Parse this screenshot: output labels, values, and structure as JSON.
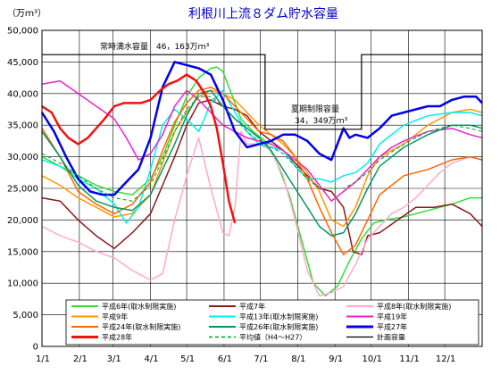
{
  "chart_data": {
    "type": "line",
    "title": "利根川上流８ダム貯水容量",
    "ylabel": "（万ｍ³）",
    "ylim": [
      0,
      50000
    ],
    "yticks": [
      0,
      5000,
      10000,
      15000,
      20000,
      25000,
      30000,
      35000,
      40000,
      45000,
      50000
    ],
    "ytick_labels": [
      "0",
      "5,000",
      "10,000",
      "15,000",
      "20,000",
      "25,000",
      "30,000",
      "35,000",
      "40,000",
      "45,000",
      "50,000"
    ],
    "xlim": [
      0,
      365
    ],
    "xticks": [
      0,
      31,
      59,
      90,
      120,
      151,
      181,
      212,
      243,
      273,
      304,
      334
    ],
    "xtick_labels": [
      "1/1",
      "2/1",
      "3/1",
      "4/1",
      "5/1",
      "6/1",
      "7/1",
      "8/1",
      "9/1",
      "10/1",
      "11/1",
      "12/1"
    ],
    "annotations": [
      {
        "text": "常時満水容量　46，163万ｍ³"
      },
      {
        "text": "夏期制限容量"
      },
      {
        "text": "34，349万ｍ³"
      }
    ],
    "capacity": {
      "name": "計画容量",
      "points": [
        [
          0,
          46163
        ],
        [
          185,
          46163
        ],
        [
          185,
          34349
        ],
        [
          265,
          34349
        ],
        [
          265,
          46163
        ],
        [
          365,
          46163
        ]
      ]
    },
    "series": [
      {
        "name": "平成6年(取水制限実施)",
        "color": "#33dd33",
        "width": 1.5,
        "dash": "",
        "x": [
          0,
          15,
          30,
          45,
          60,
          75,
          90,
          100,
          110,
          120,
          130,
          140,
          145,
          150,
          157,
          165,
          175,
          185,
          195,
          205,
          215,
          225,
          235,
          245,
          255,
          265,
          275,
          285,
          300,
          320,
          340,
          355,
          365
        ],
        "y": [
          30000,
          28500,
          27000,
          25500,
          24500,
          24000,
          26500,
          30000,
          35000,
          39500,
          42500,
          44000,
          44200,
          43500,
          40000,
          36000,
          34000,
          32500,
          29000,
          24000,
          17000,
          10000,
          8000,
          9500,
          13500,
          17000,
          19500,
          20000,
          20500,
          21500,
          22500,
          23500,
          23500
        ]
      },
      {
        "name": "平成7年",
        "color": "#8b1a1a",
        "width": 1.5,
        "dash": "",
        "x": [
          0,
          15,
          30,
          45,
          60,
          75,
          90,
          100,
          110,
          120,
          130,
          140,
          150,
          160,
          170,
          180,
          190,
          200,
          210,
          220,
          230,
          240,
          250,
          258,
          265,
          270,
          280,
          295,
          310,
          325,
          340,
          355,
          365
        ],
        "y": [
          23500,
          23000,
          20000,
          17500,
          15500,
          18000,
          21000,
          25500,
          30000,
          35000,
          38500,
          39000,
          38000,
          37500,
          36500,
          34000,
          32500,
          31000,
          29000,
          27000,
          25000,
          24500,
          22000,
          15000,
          14500,
          17500,
          18000,
          20000,
          22000,
          22000,
          22500,
          21000,
          19000
        ]
      },
      {
        "name": "平成8年(取水制限実施)",
        "color": "#ffaacc",
        "width": 1.5,
        "dash": "",
        "x": [
          0,
          15,
          30,
          45,
          60,
          75,
          90,
          100,
          110,
          120,
          130,
          140,
          150,
          155,
          160,
          165,
          170,
          180,
          190,
          200,
          210,
          220,
          230,
          240,
          250,
          260,
          270,
          280,
          290,
          300,
          310,
          320,
          330,
          340,
          355,
          365
        ],
        "y": [
          19000,
          17500,
          16500,
          15000,
          14000,
          12000,
          10500,
          11500,
          20000,
          27000,
          33000,
          25000,
          18000,
          17500,
          22000,
          34000,
          32000,
          32000,
          31000,
          27000,
          20000,
          12000,
          8000,
          8500,
          9500,
          13000,
          17000,
          19000,
          21000,
          22000,
          23500,
          25500,
          27500,
          29000,
          30000,
          29500
        ]
      },
      {
        "name": "平成9年",
        "color": "#ff9900",
        "width": 1.5,
        "dash": "",
        "x": [
          0,
          15,
          30,
          45,
          60,
          75,
          90,
          100,
          110,
          120,
          130,
          140,
          150,
          160,
          170,
          180,
          190,
          200,
          210,
          220,
          230,
          240,
          250,
          260,
          270,
          280,
          300,
          320,
          340,
          355,
          365
        ],
        "y": [
          27000,
          25500,
          23500,
          22000,
          20500,
          21000,
          24000,
          29000,
          34000,
          37000,
          39500,
          40500,
          40000,
          39000,
          37000,
          35000,
          33500,
          32000,
          30000,
          27500,
          24500,
          20000,
          19000,
          22000,
          27000,
          30000,
          32000,
          35000,
          37000,
          37500,
          37000
        ]
      },
      {
        "name": "平成13年(取水制限実施)",
        "color": "#00eeee",
        "width": 1.5,
        "dash": "",
        "x": [
          0,
          15,
          30,
          45,
          60,
          70,
          80,
          90,
          100,
          110,
          120,
          130,
          140,
          150,
          160,
          170,
          180,
          190,
          200,
          210,
          220,
          230,
          240,
          250,
          260,
          270,
          280,
          300,
          320,
          340,
          355,
          365
        ],
        "y": [
          29500,
          28500,
          26500,
          25000,
          22500,
          19500,
          22000,
          28000,
          35000,
          37500,
          36000,
          34000,
          38500,
          40500,
          37000,
          34000,
          32000,
          31500,
          31000,
          28500,
          26500,
          26500,
          26000,
          27000,
          27500,
          29000,
          32000,
          35000,
          36500,
          37000,
          37000,
          36500
        ]
      },
      {
        "name": "平成19年",
        "color": "#ee22cc",
        "width": 1.5,
        "dash": "",
        "x": [
          0,
          15,
          30,
          45,
          60,
          70,
          80,
          90,
          100,
          110,
          120,
          130,
          140,
          150,
          160,
          170,
          180,
          190,
          200,
          210,
          220,
          230,
          240,
          250,
          260,
          270,
          280,
          290,
          300,
          320,
          340,
          355,
          365
        ],
        "y": [
          41500,
          42000,
          40000,
          38000,
          36000,
          33000,
          29500,
          30500,
          33500,
          38000,
          40500,
          39000,
          37000,
          35000,
          34000,
          33000,
          32500,
          32000,
          31000,
          29500,
          28000,
          25500,
          23000,
          24500,
          26000,
          28000,
          30000,
          31500,
          32500,
          34000,
          34500,
          33500,
          33000
        ]
      },
      {
        "name": "平成24年(取水制限実施)",
        "color": "#ff6600",
        "width": 1.5,
        "dash": "",
        "x": [
          0,
          15,
          30,
          45,
          60,
          75,
          90,
          100,
          110,
          120,
          130,
          140,
          150,
          160,
          170,
          180,
          190,
          200,
          210,
          220,
          230,
          240,
          250,
          260,
          270,
          280,
          300,
          320,
          340,
          355,
          365
        ],
        "y": [
          34500,
          30000,
          24500,
          22500,
          21000,
          22500,
          26000,
          31000,
          35500,
          38500,
          40500,
          41000,
          40000,
          38000,
          36000,
          34000,
          33500,
          32500,
          30000,
          26500,
          22000,
          18000,
          14500,
          16000,
          20000,
          24000,
          27000,
          28000,
          29500,
          30000,
          29500
        ]
      },
      {
        "name": "平成26年(取水制限実施)",
        "color": "#009966",
        "width": 1.5,
        "dash": "",
        "x": [
          0,
          15,
          30,
          45,
          60,
          75,
          90,
          100,
          110,
          120,
          130,
          140,
          150,
          160,
          170,
          180,
          190,
          200,
          210,
          220,
          230,
          240,
          250,
          260,
          270,
          280,
          300,
          320,
          340,
          355,
          365
        ],
        "y": [
          34000,
          30000,
          25500,
          23000,
          22000,
          21500,
          24000,
          28000,
          32000,
          36500,
          40000,
          40500,
          38000,
          36000,
          34500,
          33000,
          31000,
          28000,
          25000,
          22000,
          19000,
          17500,
          18000,
          21000,
          25000,
          28500,
          31500,
          33500,
          35000,
          35000,
          34500
        ]
      },
      {
        "name": "平成27年",
        "color": "#0000ee",
        "width": 2.5,
        "dash": "",
        "x": [
          0,
          10,
          20,
          30,
          40,
          50,
          60,
          70,
          80,
          90,
          100,
          110,
          120,
          130,
          140,
          150,
          160,
          170,
          180,
          190,
          200,
          210,
          220,
          230,
          240,
          250,
          255,
          260,
          270,
          280,
          290,
          300,
          310,
          320,
          330,
          340,
          350,
          360,
          365
        ],
        "y": [
          37000,
          34000,
          30000,
          26500,
          24500,
          24000,
          24000,
          26000,
          28000,
          33000,
          41000,
          45000,
          44500,
          44000,
          43000,
          39000,
          34000,
          31500,
          32000,
          32500,
          33500,
          33500,
          32500,
          30500,
          29500,
          34500,
          33000,
          33500,
          33000,
          34500,
          36500,
          37000,
          37500,
          38000,
          38000,
          39000,
          39500,
          39500,
          38500
        ]
      },
      {
        "name": "平成28年",
        "color": "#ee1111",
        "width": 2.5,
        "dash": "",
        "x": [
          0,
          8,
          15,
          22,
          30,
          38,
          45,
          52,
          60,
          68,
          75,
          82,
          90,
          98,
          105,
          112,
          120,
          128,
          135,
          140,
          145,
          150,
          155,
          160
        ],
        "y": [
          38000,
          37000,
          34500,
          33000,
          32000,
          33000,
          34500,
          36000,
          38000,
          38500,
          38500,
          38500,
          39000,
          40500,
          41500,
          42000,
          43000,
          42000,
          40000,
          38000,
          34500,
          29000,
          23000,
          19500
        ]
      },
      {
        "name": "平均値（H4～H27）",
        "color": "#009933",
        "width": 1,
        "dash": "4,3",
        "x": [
          0,
          15,
          30,
          45,
          60,
          75,
          90,
          100,
          110,
          120,
          130,
          140,
          150,
          160,
          170,
          180,
          190,
          200,
          210,
          220,
          230,
          240,
          250,
          260,
          270,
          280,
          300,
          320,
          340,
          355,
          365
        ],
        "y": [
          30500,
          29000,
          27000,
          25000,
          23500,
          23000,
          25500,
          29500,
          34000,
          37500,
          39500,
          39500,
          38000,
          36000,
          34000,
          32500,
          31500,
          30500,
          28500,
          26500,
          25000,
          25000,
          25000,
          26000,
          27500,
          29500,
          32000,
          34000,
          35000,
          34500,
          34000
        ]
      }
    ],
    "legend": {
      "placement": "bottom",
      "entries": [
        "平成6年(取水制限実施)",
        "平成7年",
        "平成8年(取水制限実施)",
        "平成9年",
        "平成13年(取水制限実施)",
        "平成19年",
        "平成24年(取水制限実施)",
        "平成26年(取水制限実施)",
        "平成27年",
        "平成28年",
        "平均値（H4～H27）",
        "計画容量"
      ]
    }
  }
}
